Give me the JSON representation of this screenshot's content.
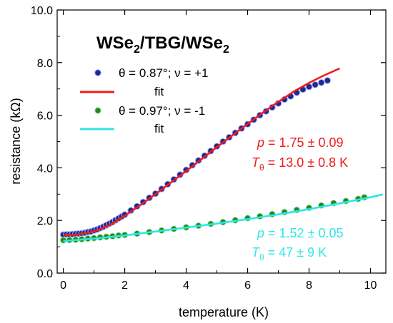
{
  "chart_data": {
    "type": "scatter",
    "title": "WSe2/TBG/WSe2",
    "title_parts": {
      "a": "WSe",
      "sub1": "2",
      "b": "/TBG/WSe",
      "sub2": "2"
    },
    "xlabel": "temperature (K)",
    "ylabel": "resistance (kΩ)",
    "xlim": [
      -0.2,
      10.5
    ],
    "ylim": [
      0,
      10
    ],
    "x_ticks": [
      0,
      2,
      4,
      6,
      8,
      10
    ],
    "x_tick_labels": [
      "0",
      "2",
      "4",
      "6",
      "8",
      "10"
    ],
    "y_ticks": [
      0,
      2,
      4,
      6,
      8,
      10
    ],
    "y_tick_labels": [
      "0.0",
      "2.0",
      "4.0",
      "6.0",
      "8.0",
      "10.0"
    ],
    "grid": false,
    "legend_position": "top-left",
    "series": [
      {
        "name": "θ = 0.87°; ν = +1",
        "kind": "points",
        "color": "#1f2a8c",
        "x": [
          0.0,
          0.1,
          0.2,
          0.3,
          0.4,
          0.5,
          0.6,
          0.7,
          0.8,
          0.9,
          1.0,
          1.1,
          1.2,
          1.3,
          1.4,
          1.5,
          1.6,
          1.7,
          1.8,
          1.9,
          2.0,
          2.2,
          2.4,
          2.6,
          2.8,
          3.0,
          3.2,
          3.4,
          3.6,
          3.8,
          4.0,
          4.2,
          4.4,
          4.6,
          4.8,
          5.0,
          5.2,
          5.4,
          5.6,
          5.8,
          6.0,
          6.2,
          6.4,
          6.6,
          6.8,
          7.0,
          7.2,
          7.4,
          7.6,
          7.8,
          8.0,
          8.2,
          8.4,
          8.6
        ],
        "y": [
          1.46,
          1.47,
          1.47,
          1.48,
          1.49,
          1.5,
          1.51,
          1.53,
          1.56,
          1.58,
          1.62,
          1.66,
          1.71,
          1.76,
          1.82,
          1.88,
          1.94,
          2.01,
          2.08,
          2.15,
          2.22,
          2.38,
          2.54,
          2.7,
          2.86,
          3.02,
          3.2,
          3.38,
          3.56,
          3.74,
          3.92,
          4.1,
          4.28,
          4.46,
          4.64,
          4.82,
          5.0,
          5.16,
          5.33,
          5.5,
          5.66,
          5.83,
          6.0,
          6.15,
          6.3,
          6.45,
          6.6,
          6.72,
          6.86,
          6.98,
          7.08,
          7.16,
          7.24,
          7.32
        ]
      },
      {
        "name": "fit",
        "kind": "line",
        "color": "#ee1c1c",
        "x": [
          0.0,
          0.5,
          1.0,
          1.5,
          2.0,
          2.5,
          3.0,
          3.5,
          4.0,
          4.5,
          5.0,
          5.5,
          6.0,
          6.5,
          7.0,
          7.5,
          8.0,
          8.5,
          9.0
        ],
        "y": [
          1.44,
          1.47,
          1.58,
          1.82,
          2.18,
          2.58,
          3.0,
          3.44,
          3.88,
          4.33,
          4.79,
          5.23,
          5.67,
          6.1,
          6.51,
          6.9,
          7.23,
          7.52,
          7.78
        ]
      },
      {
        "name": "θ = 0.97°; ν = -1",
        "kind": "points",
        "color": "#1f8a1f",
        "x": [
          0.0,
          0.2,
          0.4,
          0.6,
          0.8,
          1.0,
          1.2,
          1.4,
          1.6,
          1.8,
          2.0,
          2.4,
          2.8,
          3.2,
          3.6,
          4.0,
          4.4,
          4.8,
          5.2,
          5.6,
          6.0,
          6.4,
          6.8,
          7.2,
          7.6,
          8.0,
          8.4,
          8.8,
          9.2,
          9.6,
          9.8
        ],
        "y": [
          1.25,
          1.26,
          1.27,
          1.29,
          1.31,
          1.33,
          1.36,
          1.38,
          1.4,
          1.43,
          1.45,
          1.5,
          1.56,
          1.62,
          1.68,
          1.74,
          1.8,
          1.87,
          1.94,
          2.01,
          2.09,
          2.16,
          2.24,
          2.32,
          2.4,
          2.48,
          2.57,
          2.66,
          2.74,
          2.82,
          2.88
        ]
      },
      {
        "name": "fit",
        "kind": "line",
        "color": "#2fe6e6",
        "x": [
          0.0,
          1.0,
          2.0,
          3.0,
          4.0,
          5.0,
          6.0,
          7.0,
          8.0,
          9.0,
          10.0,
          10.4
        ],
        "y": [
          1.22,
          1.31,
          1.43,
          1.58,
          1.73,
          1.88,
          2.05,
          2.23,
          2.43,
          2.65,
          2.88,
          2.99
        ]
      }
    ],
    "annotations": [
      {
        "color": "#ee1c1c",
        "p_sym": "p",
        "p_text": " = 1.75 ± 0.09",
        "t_sym": "T",
        "t_sub": "θ",
        "t_text": " = 13.0 ± 0.8 K"
      },
      {
        "color": "#2fe6e6",
        "p_sym": "p",
        "p_text": " = 1.52 ± 0.05",
        "t_sym": "T",
        "t_sub": "θ",
        "t_text": " = 47 ± 9 K"
      }
    ]
  }
}
